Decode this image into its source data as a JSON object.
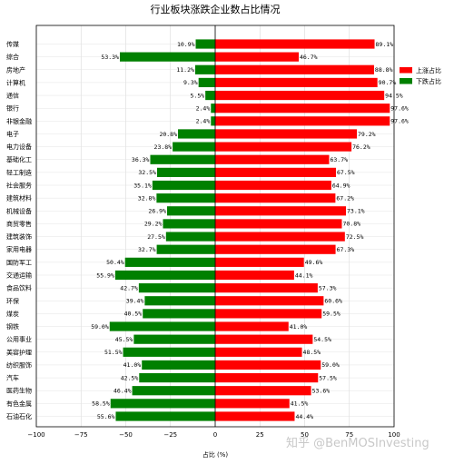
{
  "chart_data": {
    "type": "bar",
    "orientation": "horizontal-diverging",
    "title": "行业板块涨跌企业数占比情况",
    "xlabel": "占比 (%)",
    "xlim": [
      -100,
      100
    ],
    "xticks": [
      -100,
      -75,
      -50,
      -25,
      0,
      25,
      50,
      75,
      100
    ],
    "grid": true,
    "legend_position": "right",
    "categories": [
      "传媒",
      "综合",
      "房地产",
      "计算机",
      "通信",
      "银行",
      "非银金融",
      "电子",
      "电力设备",
      "基础化工",
      "轻工制造",
      "社会服务",
      "建筑材料",
      "机械设备",
      "商贸零售",
      "建筑装饰",
      "家用电器",
      "国防军工",
      "交通运输",
      "食品饮料",
      "环保",
      "煤炭",
      "钢铁",
      "公用事业",
      "美容护理",
      "纺织服饰",
      "汽车",
      "医药生物",
      "有色金属",
      "石油石化"
    ],
    "series": [
      {
        "name": "上涨占比",
        "color": "#ff0000",
        "values": [
          89.1,
          46.7,
          88.8,
          90.7,
          94.5,
          97.6,
          97.6,
          79.2,
          76.2,
          63.7,
          67.5,
          64.9,
          67.2,
          73.1,
          70.8,
          72.5,
          67.3,
          49.6,
          44.1,
          57.3,
          60.6,
          59.5,
          41.0,
          54.5,
          48.5,
          59.0,
          57.5,
          53.6,
          41.5,
          44.4
        ]
      },
      {
        "name": "下跌占比",
        "color": "#008000",
        "values": [
          10.9,
          53.3,
          11.2,
          9.3,
          5.5,
          2.4,
          2.4,
          20.8,
          23.8,
          36.3,
          32.5,
          35.1,
          32.8,
          26.9,
          29.2,
          27.5,
          32.7,
          50.4,
          55.9,
          42.7,
          39.4,
          40.5,
          59.0,
          45.5,
          51.5,
          41.0,
          42.5,
          46.4,
          58.5,
          55.6
        ]
      }
    ]
  },
  "watermark": "知乎 @BenMOSInvesting"
}
